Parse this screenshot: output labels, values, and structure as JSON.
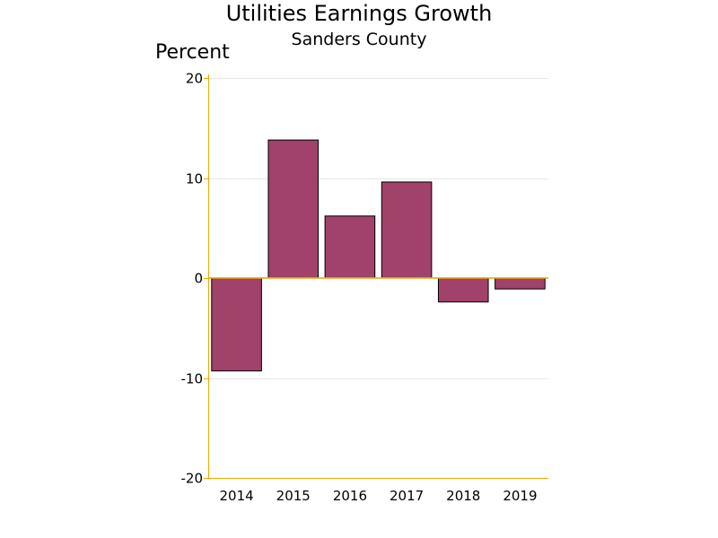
{
  "chart_data": {
    "type": "bar",
    "title": "Utilities Earnings Growth",
    "subtitle": "Sanders County",
    "ylabel": "Percent",
    "xlabel": "",
    "categories": [
      "2014",
      "2015",
      "2016",
      "2017",
      "2018",
      "2019"
    ],
    "values": [
      -9.3,
      13.8,
      6.2,
      9.6,
      -2.4,
      -1.1
    ],
    "ylim": [
      -20,
      20
    ],
    "yticks": [
      -20,
      -10,
      0,
      10,
      20
    ],
    "grid": true,
    "legend": "none",
    "colors": {
      "bar_fill": "#A0426A",
      "bar_stroke": "#000000",
      "axis": "#F0A800",
      "zero_line": "#F0A800",
      "grid": "#E6E6E6"
    }
  }
}
